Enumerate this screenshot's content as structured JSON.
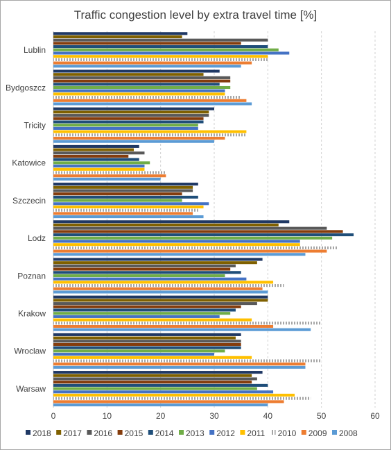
{
  "chart_data": {
    "type": "bar",
    "orientation": "horizontal",
    "title": "Traffic congestion level by extra travel time [%]",
    "xlabel": "",
    "ylabel": "",
    "xlim": [
      0,
      60
    ],
    "xticks": [
      0,
      10,
      20,
      30,
      40,
      50,
      60
    ],
    "grid": "vertical dashed",
    "legend_position": "bottom",
    "categories": [
      "Lublin",
      "Bydgoszcz",
      "Tricity",
      "Katowice",
      "Szczecin",
      "Lodz",
      "Poznan",
      "Krakow",
      "Wroclaw",
      "Warsaw"
    ],
    "series": [
      {
        "name": "2018",
        "color": "#1f3864",
        "pattern": "solid",
        "values": [
          25,
          31,
          30,
          16,
          27,
          44,
          39,
          40,
          35,
          39
        ]
      },
      {
        "name": "2017",
        "color": "#7f6000",
        "pattern": "solid",
        "values": [
          24,
          28,
          29,
          15,
          26,
          42,
          38,
          40,
          34,
          37
        ]
      },
      {
        "name": "2016",
        "color": "#595959",
        "pattern": "solid",
        "values": [
          40,
          33,
          29,
          17,
          26,
          51,
          34,
          38,
          35,
          38
        ]
      },
      {
        "name": "2015",
        "color": "#843c0c",
        "pattern": "solid",
        "values": [
          35,
          33,
          28,
          14,
          24,
          54,
          33,
          35,
          35,
          37
        ]
      },
      {
        "name": "2014",
        "color": "#1f4e79",
        "pattern": "solid",
        "values": [
          40,
          31,
          28,
          16,
          27,
          56,
          35,
          34,
          35,
          40
        ]
      },
      {
        "name": "2013",
        "color": "#70ad47",
        "pattern": "solid",
        "values": [
          42,
          33,
          27,
          18,
          24,
          52,
          32,
          33,
          32,
          38
        ]
      },
      {
        "name": "2012",
        "color": "#4472c4",
        "pattern": "solid",
        "values": [
          44,
          32,
          27,
          17,
          29,
          46,
          36,
          31,
          30,
          41
        ]
      },
      {
        "name": "2011",
        "color": "#ffc000",
        "pattern": "solid",
        "values": [
          40,
          32,
          36,
          17,
          28,
          46,
          41,
          37,
          37,
          45
        ]
      },
      {
        "name": "2010",
        "color": "#a5a5a5",
        "pattern": "striped",
        "values": [
          40,
          35,
          36,
          21,
          27,
          53,
          43,
          50,
          50,
          48
        ]
      },
      {
        "name": "2009",
        "color": "#ed7d31",
        "pattern": "solid",
        "values": [
          37,
          36,
          32,
          21,
          26,
          51,
          39,
          41,
          47,
          43
        ]
      },
      {
        "name": "2008",
        "color": "#5b9bd5",
        "pattern": "solid",
        "values": [
          35,
          37,
          30,
          20,
          28,
          47,
          40,
          48,
          47,
          40
        ]
      }
    ]
  }
}
